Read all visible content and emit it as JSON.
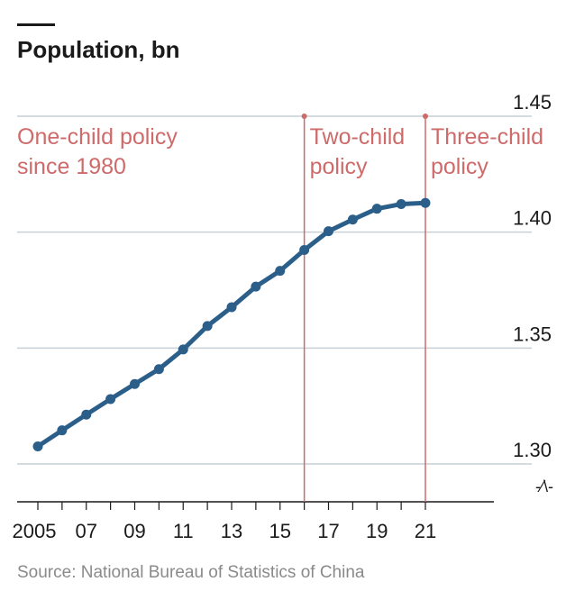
{
  "chart_data": {
    "type": "line",
    "title": "Population, bn",
    "source": "Source: National Bureau of Statistics of China",
    "x": [
      2005,
      2006,
      2007,
      2008,
      2009,
      2010,
      2011,
      2012,
      2013,
      2014,
      2015,
      2016,
      2017,
      2018,
      2019,
      2020,
      2021
    ],
    "series": [
      {
        "values": [
          1.3076,
          1.3145,
          1.3213,
          1.328,
          1.3345,
          1.3409,
          1.3494,
          1.3595,
          1.3676,
          1.3765,
          1.3833,
          1.3923,
          1.4004,
          1.4054,
          1.4101,
          1.4121,
          1.4126
        ]
      }
    ],
    "ylim": [
      1.28,
      1.45
    ],
    "yticks": [
      1.3,
      1.35,
      1.4,
      1.45
    ],
    "ytick_labels": [
      "1.30",
      "1.35",
      "1.40",
      "1.45"
    ],
    "xticks": [
      2005,
      2007,
      2009,
      2011,
      2013,
      2015,
      2017,
      2019,
      2021
    ],
    "xtick_labels": [
      "2005",
      "07",
      "09",
      "11",
      "13",
      "15",
      "17",
      "19",
      "21"
    ],
    "axis_break_symbol": "-⁄\\-",
    "annotations": [
      {
        "lines": [
          "One-child policy",
          "since 1980"
        ]
      },
      {
        "x": 2016,
        "lines": [
          "Two-child",
          "policy"
        ]
      },
      {
        "x": 2021,
        "lines": [
          "Three-child",
          "policy"
        ]
      }
    ],
    "grid": true,
    "colors": {
      "line": "#2b5f8a",
      "annotation": "#cf6a6a",
      "grid": "#c7d0d6",
      "text": "#1a1a1a",
      "source": "#8a8a8a"
    }
  }
}
